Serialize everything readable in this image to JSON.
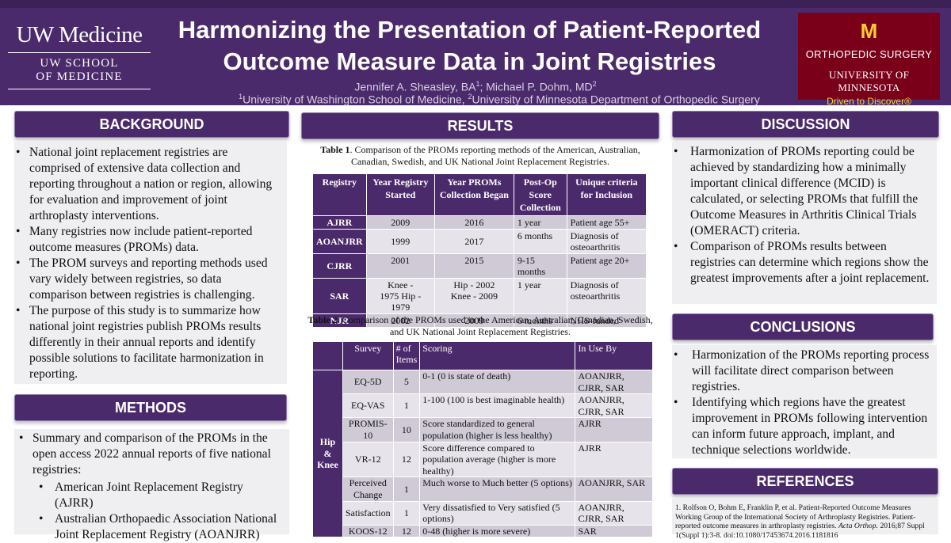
{
  "header": {
    "uw_logo_main": "UW Medicine",
    "uw_logo_line1": "UW SCHOOL",
    "uw_logo_line2": "OF MEDICINE",
    "title_line1": "Harmonizing the Presentation of Patient-Reported",
    "title_line2": "Outcome Measure Data in Joint Registries",
    "author1": "Jennifer A. Sheasley, BA",
    "author1_sup": "1",
    "author_sep": "; Michael P. Dohm, MD",
    "author2_sup": "2",
    "affil1_sup": "1",
    "affil1": "University of Washington School of Medicine, ",
    "affil2_sup": "2",
    "affil2": "University of Minnesota Department of Orthopedic Surgery",
    "umn_m": "M",
    "umn_dept": "ORTHOPEDIC SURGERY",
    "umn_univ": "UNIVERSITY OF MINNESOTA",
    "umn_tagline": "Driven to Discover®"
  },
  "background": {
    "heading": "BACKGROUND",
    "bullets": [
      "National joint replacement registries are comprised of extensive data collection and reporting throughout a nation or region, allowing for evaluation and improvement of joint arthroplasty interventions.",
      "Many registries now include patient-reported outcome measures (PROMs) data.",
      "The PROM surveys and reporting methods used vary widely between registries, so data comparison between registries is challenging.",
      "The purpose of this study is to summarize how national joint registries publish PROMs results differently in their annual reports and identify possible solutions to facilitate harmonization in reporting."
    ]
  },
  "methods": {
    "heading": "METHODS",
    "bullet": "Summary and comparison of the PROMs in the open access 2022 annual reports of five national registries:",
    "sub_bullets": [
      "American Joint Replacement Registry (AJRR)",
      "Australian Orthopaedic Association National Joint Replacement Registry (AOANJRR)"
    ]
  },
  "results": {
    "heading": "RESULTS",
    "table1_caption_label": "Table 1",
    "table1_caption": ". Comparison of the PROMs reporting methods of the American, Australian, Canadian, Swedish, and UK National Joint Replacement Registries.",
    "table1_headers": [
      "Registry",
      "Year Registry Started",
      "Year PROMs Collection Began",
      "Post-Op Score Collection",
      "Unique criteria for Inclusion"
    ],
    "table1_rows": [
      {
        "registry": "AJRR",
        "started": "2009",
        "proms": "2016",
        "postop": "1 year",
        "criteria": "Patient age 55+"
      },
      {
        "registry": "AOANJRR",
        "started": "1999",
        "proms": "2017",
        "postop": "6 months",
        "criteria": "Diagnosis of osteoarthritis"
      },
      {
        "registry": "CJRR",
        "started": "2001",
        "proms": "2015",
        "postop": "9-15 months",
        "criteria": "Patient age 20+"
      },
      {
        "registry": "SAR",
        "started": "Knee - 1975 Hip - 1979",
        "proms": "Hip - 2002 Knee - 2009",
        "postop": "1 year",
        "criteria": "Diagnosis of osteoarthritis"
      },
      {
        "registry": "NJR",
        "started": "2002",
        "proms": "2009",
        "postop": "6 months",
        "criteria": "NHS-funded"
      }
    ],
    "table2_caption_label": "Table 2",
    "table2_caption": ". Comparison of the PROMs used in the American, Australian, Canadian, Swedish, and UK National Joint Replacement Registries.",
    "table2_headers": [
      "",
      "Survey",
      "# of Items",
      "Scoring",
      "In Use By"
    ],
    "table2_category": "Hip & Knee",
    "table2_rows": [
      {
        "survey": "EQ-5D",
        "items": "5",
        "scoring": "0-1 (0 is state of death)",
        "in_use": "AOANJRR, CJRR, SAR"
      },
      {
        "survey": "EQ-VAS",
        "items": "1",
        "scoring": "1-100 (100 is best imaginable health)",
        "in_use": "AOANJRR, CJRR, SAR"
      },
      {
        "survey": "PROMIS-10",
        "items": "10",
        "scoring": "Score standardized to general population (higher is less healthy)",
        "in_use": "AJRR"
      },
      {
        "survey": "VR-12",
        "items": "12",
        "scoring": "Score difference compared to population average (higher is more healthy)",
        "in_use": "AJRR"
      },
      {
        "survey": "Perceived Change",
        "items": "1",
        "scoring": "Much worse to Much better (5 options)",
        "in_use": "AOANJRR, SAR"
      },
      {
        "survey": "Satisfaction",
        "items": "1",
        "scoring": "Very dissatisfied to Very satisfied (5 options)",
        "in_use": "AOANJRR, CJRR, SAR"
      },
      {
        "survey": "KOOS-12",
        "items": "12",
        "scoring": "0-48 (higher is more severe)",
        "in_use": "SAR"
      }
    ]
  },
  "discussion": {
    "heading": "DISCUSSION",
    "bullets": [
      "Harmonization of PROMs reporting could be achieved by standardizing how a minimally important clinical difference (MCID) is calculated, or selecting PROMs that fulfill the Outcome Measures in Arthritis Clinical Trials (OMERACT) criteria.",
      "Comparison of PROMs results between registries can determine which regions show the greatest improvements after a joint replacement."
    ]
  },
  "conclusions": {
    "heading": "CONCLUSIONS",
    "bullets": [
      "Harmonization of the PROMs reporting process will facilitate direct comparison between registries.",
      "Identifying which regions have the greatest improvement in PROMs following intervention can inform future approach, implant, and technique selections worldwide."
    ]
  },
  "references": {
    "heading": "REFERENCES",
    "ref1_text": "1. Rolfson O, Bohm E, Franklin P, et al. Patient-Reported Outcome Measures Working Group of the International Society of Arthroplasty Registries. Patient-reported outcome measures in arthroplasty registries. ",
    "ref1_journal": "Acta Orthop.",
    "ref1_tail": " 2016;87 Suppl 1(Suppl 1):3-8. doi:10.1080/17453674.2016.1181816"
  }
}
